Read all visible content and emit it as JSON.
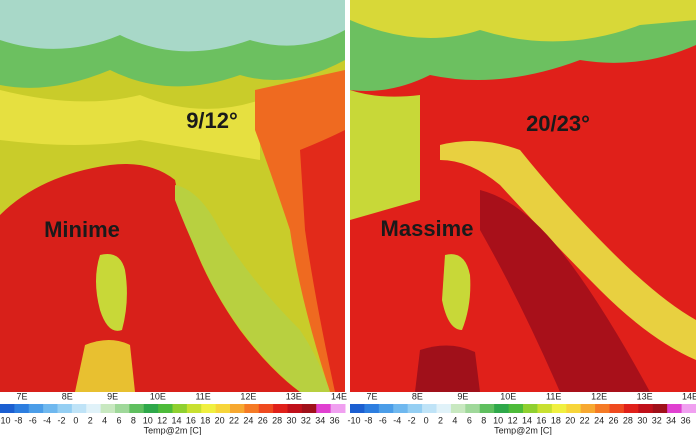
{
  "panels": [
    {
      "label": "Minime",
      "range": "9/12°"
    },
    {
      "label": "Massime",
      "range": "20/23°"
    }
  ],
  "longitudes": [
    "7E",
    "8E",
    "9E",
    "10E",
    "11E",
    "12E",
    "13E",
    "14E"
  ],
  "colorbar": {
    "title": "Temp@2m [C]",
    "labels": [
      -10,
      -8,
      -6,
      -4,
      -2,
      0,
      2,
      4,
      6,
      8,
      10,
      12,
      14,
      16,
      18,
      20,
      22,
      24,
      26,
      28,
      30,
      32,
      34,
      36
    ],
    "colors": [
      "#1c5fd1",
      "#2d7ee0",
      "#4b9de8",
      "#6fb8ef",
      "#95cff3",
      "#bfe3f7",
      "#e0f2f9",
      "#c8e8c0",
      "#9fd89a",
      "#5fbf5f",
      "#2ea84a",
      "#4dbb3a",
      "#8fd030",
      "#c8e030",
      "#f0f040",
      "#f7d53a",
      "#f7a830",
      "#f57a25",
      "#ef4a1f",
      "#e0201a",
      "#c0101a",
      "#a0101a",
      "#e040d0",
      "#f0a0f0"
    ]
  }
}
